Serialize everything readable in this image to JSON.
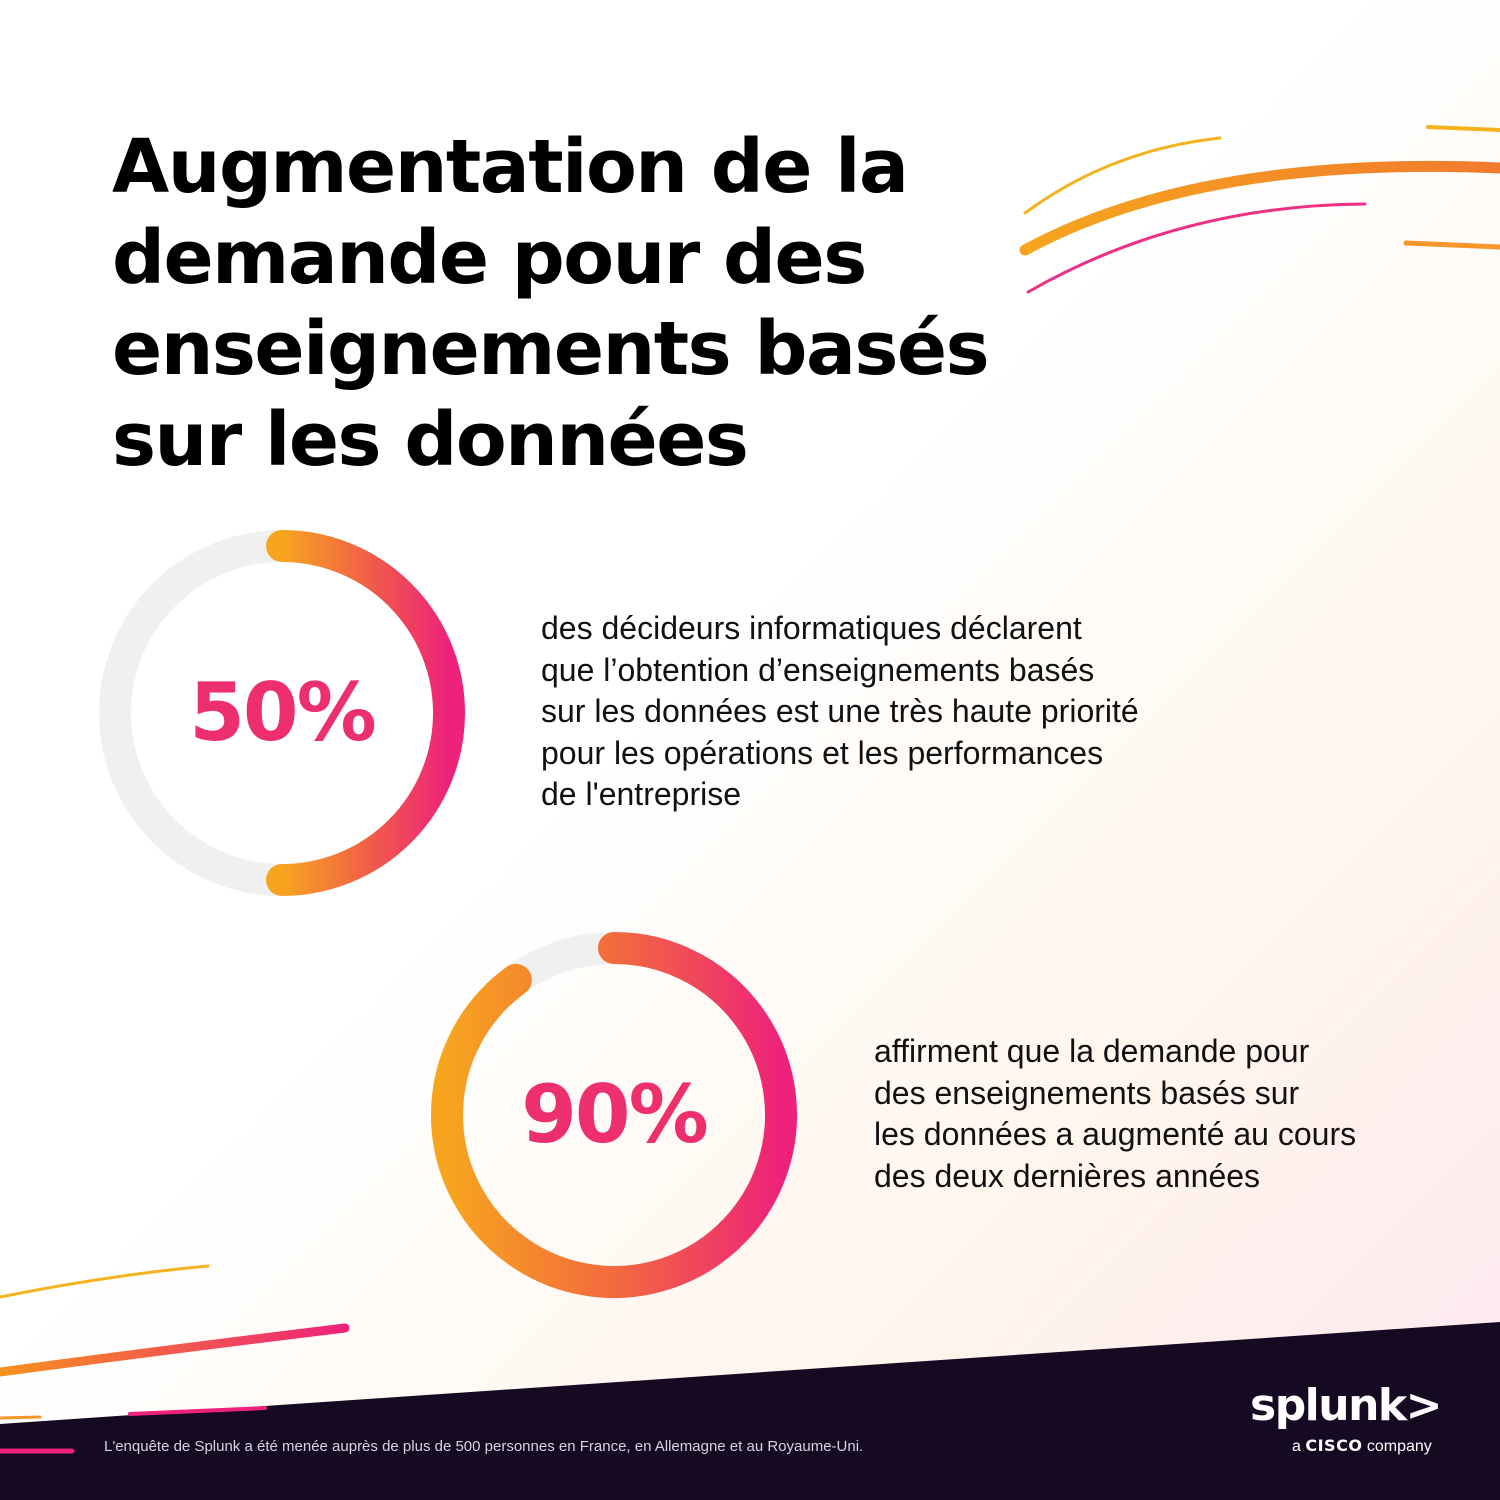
{
  "title_lines": [
    "Augmentation de la",
    "demande pour des",
    "enseignements basés",
    "sur les données"
  ],
  "chart_data": [
    {
      "type": "pie",
      "value": 50,
      "label": "50%",
      "description_lines": [
        "des décideurs informatiques déclarent",
        "que l’obtention d’enseignements basés",
        "sur les données est une très haute priorité",
        "pour les opérations et les performances",
        "de l'entreprise"
      ]
    },
    {
      "type": "pie",
      "value": 90,
      "label": "90%",
      "description_lines": [
        "affirment que la demande pour",
        "des enseignements basés sur",
        "les données a augmenté au cours",
        "des deux dernières années"
      ]
    }
  ],
  "footnote": "L'enquête de Splunk a été menée auprès de plus de 500 personnes en France, en Allemagne et au Royaume-Uni.",
  "logo": {
    "word": "splunk>",
    "sub_prefix": "a",
    "sub_brand": "CISCO",
    "sub_suffix": "company"
  },
  "colors": {
    "orange": "#f7a51e",
    "pink": "#ee227a",
    "track": "#f0f0f0",
    "footer": "#150a22"
  }
}
